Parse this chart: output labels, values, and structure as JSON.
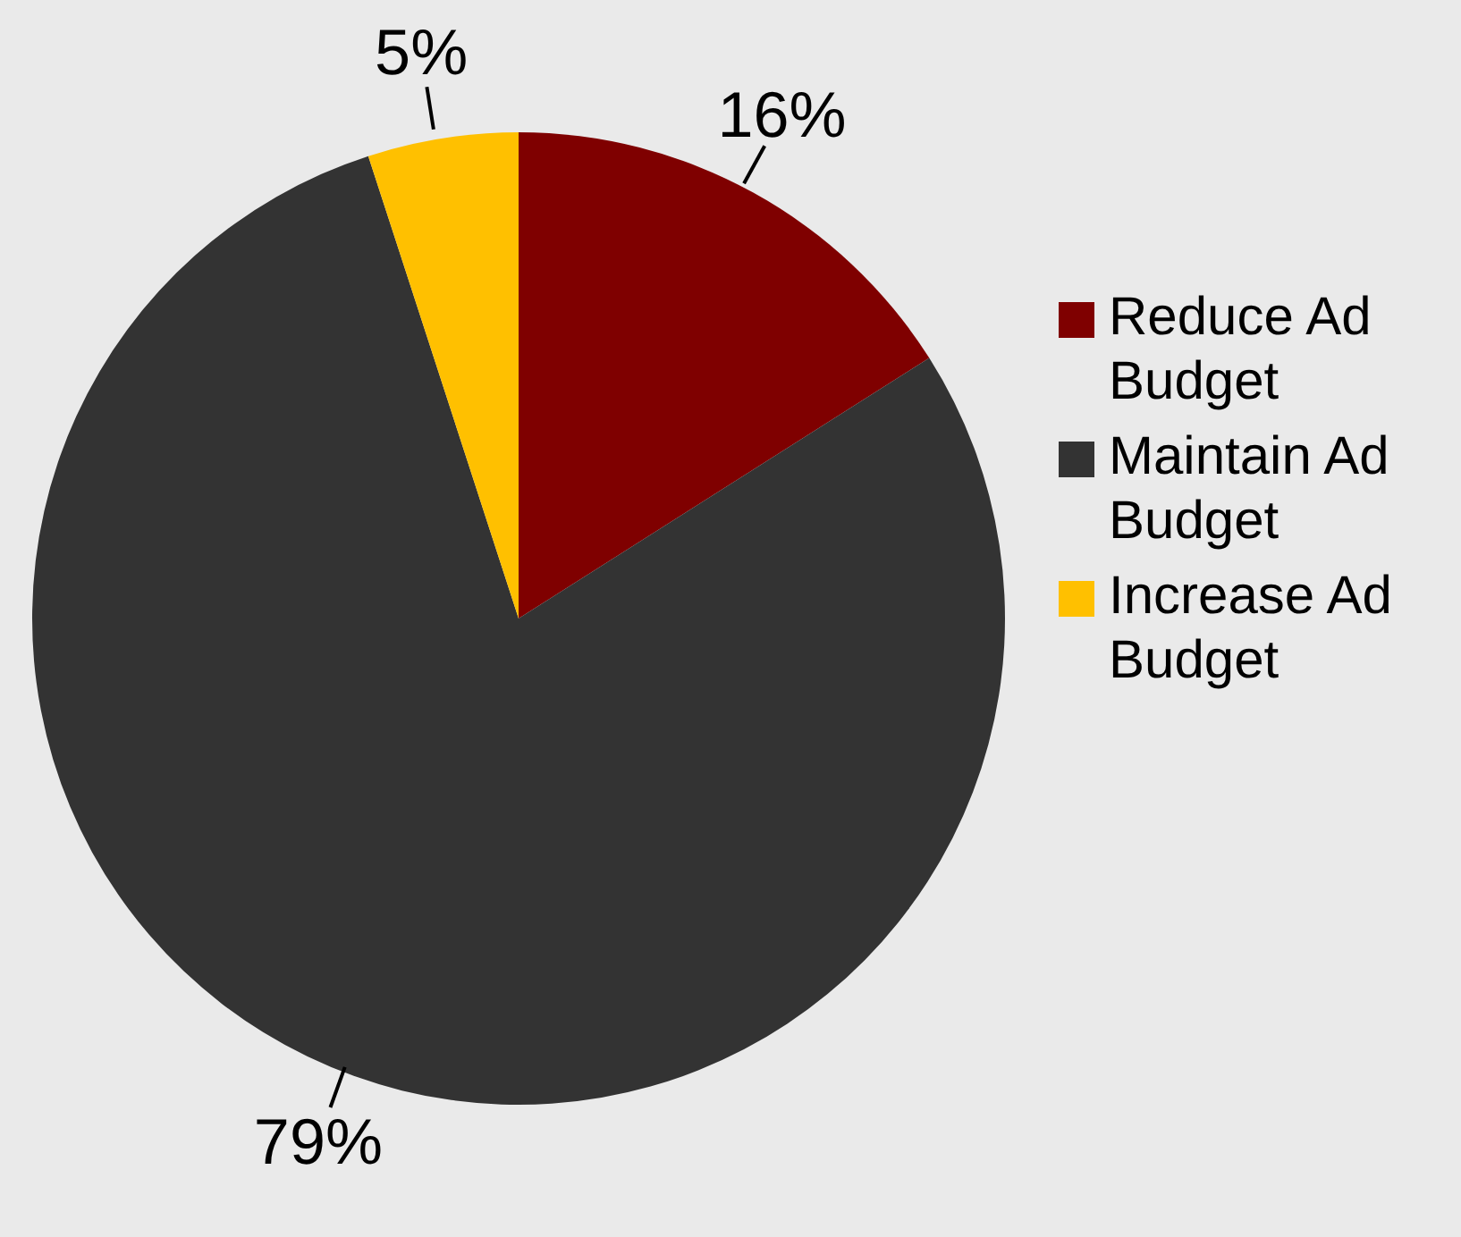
{
  "chart_data": {
    "type": "pie",
    "categories": [
      "Reduce Ad Budget",
      "Maintain Ad Budget",
      "Increase Ad Budget"
    ],
    "values": [
      16,
      79,
      5
    ],
    "colors": [
      "#7f0000",
      "#333333",
      "#ffc000"
    ],
    "value_labels": [
      "16%",
      "79%",
      "5%"
    ],
    "legend": "right"
  }
}
